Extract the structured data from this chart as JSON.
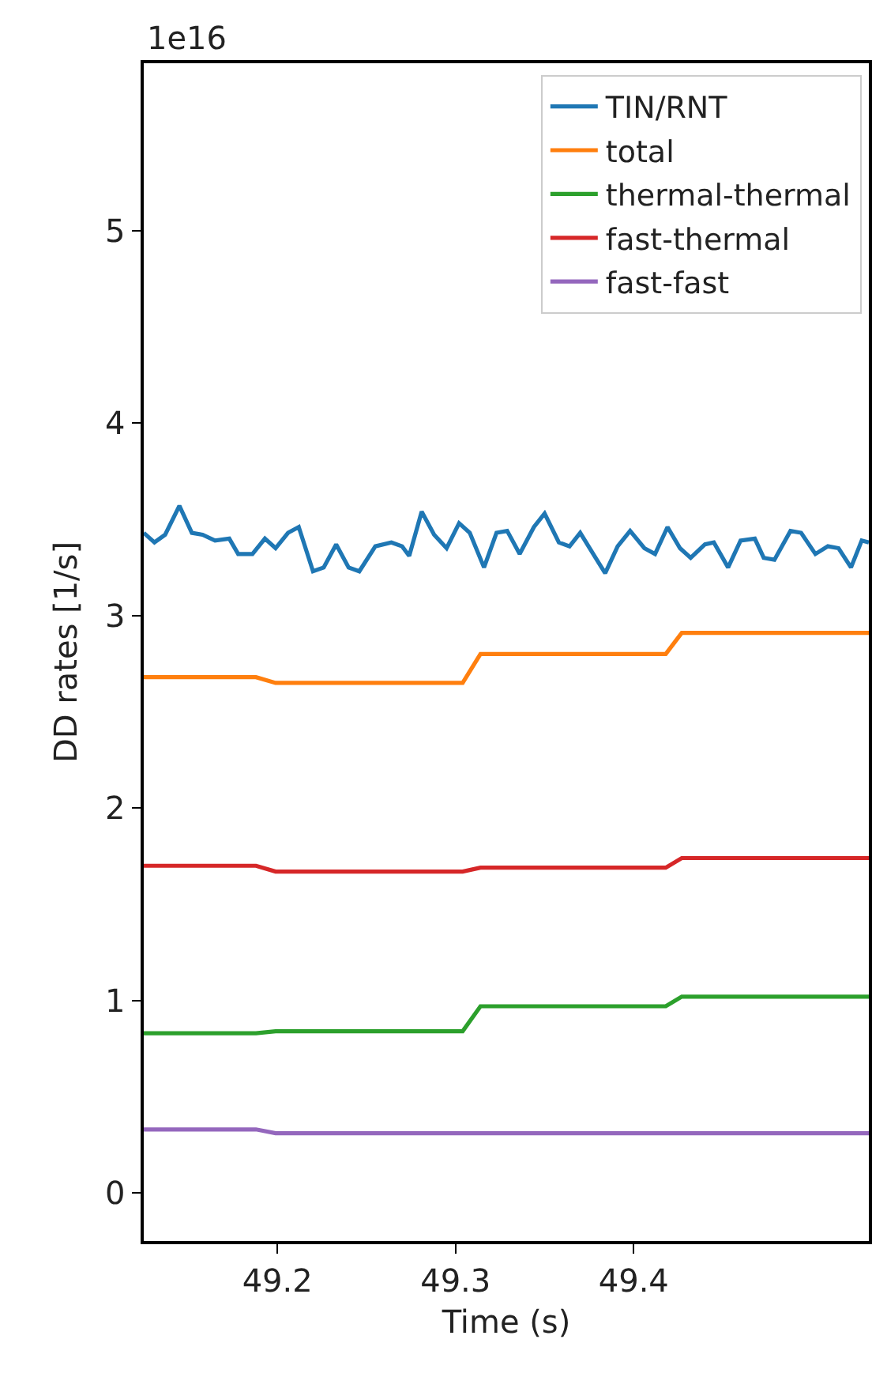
{
  "chart_data": {
    "type": "line",
    "xlabel": "Time (s)",
    "ylabel": "DD rates [1/s]",
    "annotations": [
      "1e16"
    ],
    "xlim": [
      49.125,
      49.532
    ],
    "xticks": [
      49.2,
      49.3,
      49.4
    ],
    "ylim": [
      -0.25,
      5.87
    ],
    "yticks": [
      0,
      1,
      2,
      3,
      4,
      5
    ],
    "grid": false,
    "legend": "top right",
    "marker": "none",
    "line_style": "solid",
    "series": [
      {
        "name": "TIN/RNT",
        "color": "#1f77b4",
        "x": [
          49.125,
          49.131,
          49.137,
          49.145,
          49.152,
          49.158,
          49.165,
          49.173,
          49.178,
          49.186,
          49.193,
          49.199,
          49.206,
          49.212,
          49.22,
          49.226,
          49.233,
          49.24,
          49.246,
          49.255,
          49.264,
          49.27,
          49.274,
          49.281,
          49.288,
          49.295,
          49.302,
          49.308,
          49.316,
          49.323,
          49.329,
          49.336,
          49.344,
          49.35,
          49.358,
          49.364,
          49.37,
          49.378,
          49.384,
          49.391,
          49.398,
          49.406,
          49.412,
          49.419,
          49.426,
          49.432,
          49.44,
          49.445,
          49.453,
          49.46,
          49.468,
          49.473,
          49.479,
          49.488,
          49.494,
          49.502,
          49.509,
          49.515,
          49.522,
          49.528,
          49.532
        ],
        "values": [
          3.43,
          3.38,
          3.42,
          3.57,
          3.43,
          3.42,
          3.39,
          3.4,
          3.32,
          3.32,
          3.4,
          3.35,
          3.43,
          3.46,
          3.23,
          3.25,
          3.37,
          3.25,
          3.23,
          3.36,
          3.38,
          3.36,
          3.31,
          3.54,
          3.42,
          3.35,
          3.48,
          3.43,
          3.25,
          3.43,
          3.44,
          3.32,
          3.46,
          3.53,
          3.38,
          3.36,
          3.43,
          3.31,
          3.22,
          3.36,
          3.44,
          3.35,
          3.32,
          3.46,
          3.35,
          3.3,
          3.37,
          3.38,
          3.25,
          3.39,
          3.4,
          3.3,
          3.29,
          3.44,
          3.43,
          3.32,
          3.36,
          3.35,
          3.25,
          3.39,
          3.38
        ]
      },
      {
        "name": "total",
        "color": "#ff7f0e",
        "x": [
          49.125,
          49.188,
          49.199,
          49.304,
          49.314,
          49.418,
          49.427,
          49.532
        ],
        "values": [
          2.68,
          2.68,
          2.65,
          2.65,
          2.8,
          2.8,
          2.91,
          2.91
        ]
      },
      {
        "name": "thermal-thermal",
        "color": "#2ca02c",
        "x": [
          49.125,
          49.188,
          49.199,
          49.304,
          49.314,
          49.418,
          49.427,
          49.532
        ],
        "values": [
          0.83,
          0.83,
          0.84,
          0.84,
          0.97,
          0.97,
          1.02,
          1.02
        ]
      },
      {
        "name": "fast-thermal",
        "color": "#d62728",
        "x": [
          49.125,
          49.188,
          49.199,
          49.304,
          49.314,
          49.418,
          49.427,
          49.532
        ],
        "values": [
          1.7,
          1.7,
          1.67,
          1.67,
          1.69,
          1.69,
          1.74,
          1.74
        ]
      },
      {
        "name": "fast-fast",
        "color": "#9467bd",
        "x": [
          49.125,
          49.188,
          49.199,
          49.304,
          49.314,
          49.418,
          49.427,
          49.532
        ],
        "values": [
          0.33,
          0.33,
          0.31,
          0.31,
          0.31,
          0.31,
          0.31,
          0.31
        ]
      }
    ]
  }
}
